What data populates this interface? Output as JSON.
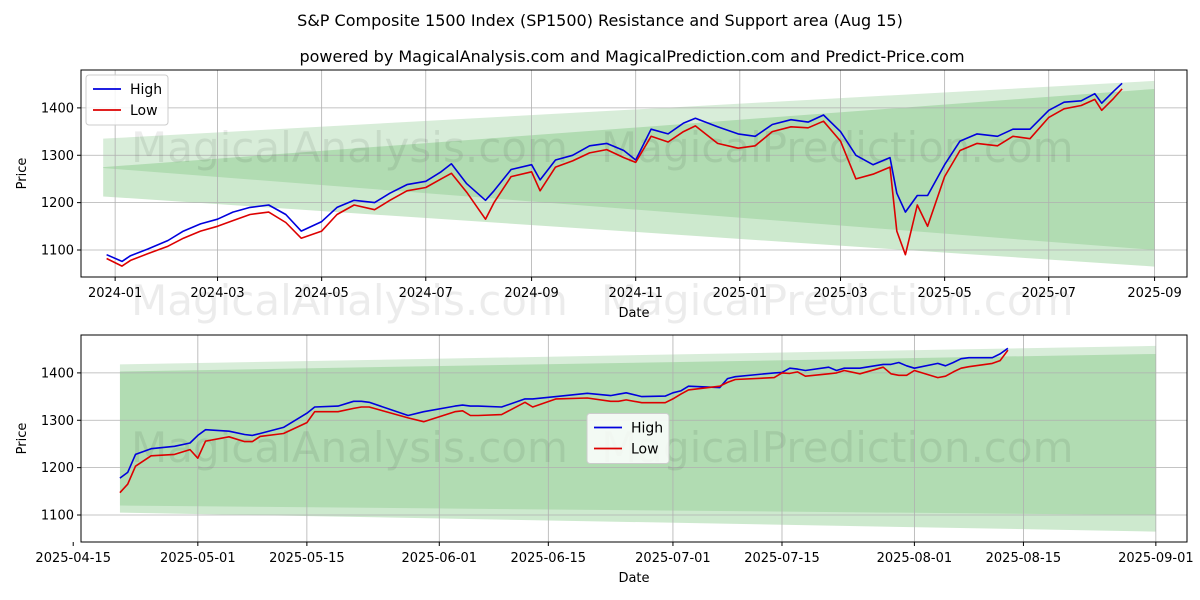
{
  "title": "S&P Composite 1500 Index (SP1500) Resistance and Support area (Aug 15)",
  "subtitle": "powered by MagicalAnalysis.com and MagicalPrediction.com and Predict-Price.com",
  "watermarks": [
    "MagicalAnalysis.com",
    "MagicalPrediction.com"
  ],
  "colors": {
    "high": "#0000dd",
    "low": "#dd0000",
    "band": "#4caf50",
    "grid": "#b0b0b0"
  },
  "chart_data": [
    {
      "type": "line",
      "xlabel": "Date",
      "ylabel": "Price",
      "xlim": [
        "2023-12-12",
        "2025-09-20"
      ],
      "ylim": [
        1043,
        1480
      ],
      "xticks": [
        "2024-01",
        "2024-03",
        "2024-05",
        "2024-07",
        "2024-09",
        "2024-11",
        "2025-01",
        "2025-03",
        "2025-05",
        "2025-07",
        "2025-09"
      ],
      "yticks": [
        1100,
        1200,
        1300,
        1400
      ],
      "grid": true,
      "legend": "top-left",
      "series": [
        {
          "name": "High",
          "x": [
            "2023-12-27",
            "2024-01-05",
            "2024-01-10",
            "2024-01-20",
            "2024-02-01",
            "2024-02-10",
            "2024-02-20",
            "2024-03-01",
            "2024-03-10",
            "2024-03-20",
            "2024-03-31",
            "2024-04-10",
            "2024-04-19",
            "2024-05-01",
            "2024-05-10",
            "2024-05-20",
            "2024-06-01",
            "2024-06-10",
            "2024-06-20",
            "2024-07-01",
            "2024-07-10",
            "2024-07-16",
            "2024-07-25",
            "2024-08-05",
            "2024-08-10",
            "2024-08-20",
            "2024-09-01",
            "2024-09-06",
            "2024-09-15",
            "2024-09-25",
            "2024-10-05",
            "2024-10-15",
            "2024-10-25",
            "2024-11-01",
            "2024-11-10",
            "2024-11-20",
            "2024-11-29",
            "2024-12-06",
            "2024-12-19",
            "2024-12-31",
            "2025-01-10",
            "2025-01-20",
            "2025-01-31",
            "2025-02-10",
            "2025-02-19",
            "2025-03-01",
            "2025-03-10",
            "2025-03-20",
            "2025-03-30",
            "2025-04-03",
            "2025-04-08",
            "2025-04-15",
            "2025-04-21",
            "2025-05-01",
            "2025-05-10",
            "2025-05-20",
            "2025-06-01",
            "2025-06-10",
            "2025-06-20",
            "2025-07-01",
            "2025-07-10",
            "2025-07-20",
            "2025-07-28",
            "2025-08-01",
            "2025-08-08",
            "2025-08-13"
          ],
          "values": [
            1090,
            1076,
            1088,
            1102,
            1120,
            1140,
            1155,
            1165,
            1180,
            1190,
            1195,
            1175,
            1140,
            1160,
            1190,
            1205,
            1200,
            1220,
            1238,
            1245,
            1265,
            1282,
            1240,
            1205,
            1225,
            1270,
            1280,
            1248,
            1290,
            1300,
            1320,
            1325,
            1310,
            1290,
            1355,
            1345,
            1368,
            1378,
            1360,
            1345,
            1340,
            1365,
            1375,
            1370,
            1385,
            1350,
            1300,
            1280,
            1295,
            1220,
            1180,
            1215,
            1215,
            1280,
            1330,
            1345,
            1340,
            1355,
            1355,
            1395,
            1412,
            1415,
            1430,
            1410,
            1435,
            1452
          ]
        },
        {
          "name": "Low",
          "x": [
            "2023-12-27",
            "2024-01-05",
            "2024-01-10",
            "2024-01-20",
            "2024-02-01",
            "2024-02-10",
            "2024-02-20",
            "2024-03-01",
            "2024-03-10",
            "2024-03-20",
            "2024-03-31",
            "2024-04-10",
            "2024-04-19",
            "2024-05-01",
            "2024-05-10",
            "2024-05-20",
            "2024-06-01",
            "2024-06-10",
            "2024-06-20",
            "2024-07-01",
            "2024-07-10",
            "2024-07-16",
            "2024-07-25",
            "2024-08-05",
            "2024-08-10",
            "2024-08-20",
            "2024-09-01",
            "2024-09-06",
            "2024-09-15",
            "2024-09-25",
            "2024-10-05",
            "2024-10-15",
            "2024-10-25",
            "2024-11-01",
            "2024-11-10",
            "2024-11-20",
            "2024-11-29",
            "2024-12-06",
            "2024-12-19",
            "2024-12-31",
            "2025-01-10",
            "2025-01-20",
            "2025-01-31",
            "2025-02-10",
            "2025-02-19",
            "2025-03-01",
            "2025-03-10",
            "2025-03-20",
            "2025-03-30",
            "2025-04-03",
            "2025-04-08",
            "2025-04-15",
            "2025-04-21",
            "2025-05-01",
            "2025-05-10",
            "2025-05-20",
            "2025-06-01",
            "2025-06-10",
            "2025-06-20",
            "2025-07-01",
            "2025-07-10",
            "2025-07-20",
            "2025-07-28",
            "2025-08-01",
            "2025-08-08",
            "2025-08-13"
          ],
          "values": [
            1082,
            1066,
            1078,
            1092,
            1108,
            1125,
            1140,
            1150,
            1162,
            1175,
            1180,
            1158,
            1125,
            1140,
            1175,
            1195,
            1185,
            1205,
            1225,
            1232,
            1250,
            1262,
            1222,
            1165,
            1200,
            1255,
            1265,
            1225,
            1275,
            1288,
            1305,
            1312,
            1295,
            1285,
            1340,
            1328,
            1350,
            1362,
            1325,
            1315,
            1320,
            1350,
            1360,
            1358,
            1372,
            1330,
            1250,
            1260,
            1275,
            1140,
            1090,
            1195,
            1150,
            1255,
            1310,
            1325,
            1320,
            1340,
            1335,
            1380,
            1398,
            1405,
            1418,
            1395,
            1420,
            1440
          ]
        }
      ],
      "bands": [
        {
          "name": "",
          "x": [
            "2023-12-25",
            "2025-09-01"
          ],
          "upper": [
            1335,
            1457
          ],
          "lower": [
            1273,
            1100
          ]
        },
        {
          "name": "",
          "x": [
            "2023-12-25",
            "2025-09-01"
          ],
          "upper": [
            1275,
            1440
          ],
          "lower": [
            1213,
            1065
          ]
        }
      ]
    },
    {
      "type": "line",
      "xlabel": "Date",
      "ylabel": "Price",
      "xlim": [
        "2025-04-16",
        "2025-09-05"
      ],
      "ylim": [
        1043,
        1480
      ],
      "xticks": [
        "2025-04-15",
        "2025-05-01",
        "2025-05-15",
        "2025-06-01",
        "2025-06-15",
        "2025-07-01",
        "2025-07-15",
        "2025-08-01",
        "2025-08-15",
        "2025-09-01"
      ],
      "yticks": [
        1100,
        1200,
        1300,
        1400
      ],
      "grid": true,
      "legend": "center",
      "series": [
        {
          "name": "High",
          "x": [
            "2025-04-21",
            "2025-04-22",
            "2025-04-23",
            "2025-04-25",
            "2025-04-28",
            "2025-04-30",
            "2025-05-01",
            "2025-05-02",
            "2025-05-05",
            "2025-05-07",
            "2025-05-08",
            "2025-05-09",
            "2025-05-12",
            "2025-05-15",
            "2025-05-16",
            "2025-05-19",
            "2025-05-21",
            "2025-05-22",
            "2025-05-23",
            "2025-05-28",
            "2025-05-30",
            "2025-06-03",
            "2025-06-04",
            "2025-06-05",
            "2025-06-06",
            "2025-06-09",
            "2025-06-12",
            "2025-06-13",
            "2025-06-16",
            "2025-06-20",
            "2025-06-23",
            "2025-06-24",
            "2025-06-25",
            "2025-06-27",
            "2025-06-30",
            "2025-07-01",
            "2025-07-02",
            "2025-07-03",
            "2025-07-07",
            "2025-07-08",
            "2025-07-09",
            "2025-07-14",
            "2025-07-15",
            "2025-07-16",
            "2025-07-17",
            "2025-07-18",
            "2025-07-21",
            "2025-07-22",
            "2025-07-23",
            "2025-07-25",
            "2025-07-28",
            "2025-07-29",
            "2025-07-30",
            "2025-07-31",
            "2025-08-01",
            "2025-08-04",
            "2025-08-05",
            "2025-08-06",
            "2025-08-07",
            "2025-08-08",
            "2025-08-11",
            "2025-08-12",
            "2025-08-13"
          ],
          "values": [
            1178,
            1190,
            1228,
            1240,
            1245,
            1252,
            1268,
            1280,
            1277,
            1270,
            1268,
            1272,
            1285,
            1315,
            1328,
            1330,
            1340,
            1340,
            1338,
            1310,
            1318,
            1330,
            1332,
            1330,
            1330,
            1328,
            1345,
            1345,
            1350,
            1357,
            1352,
            1355,
            1358,
            1350,
            1351,
            1358,
            1362,
            1372,
            1369,
            1388,
            1392,
            1400,
            1401,
            1410,
            1408,
            1405,
            1412,
            1405,
            1410,
            1410,
            1418,
            1418,
            1422,
            1415,
            1410,
            1420,
            1415,
            1422,
            1430,
            1432,
            1432,
            1440,
            1452
          ]
        },
        {
          "name": "Low",
          "x": [
            "2025-04-21",
            "2025-04-22",
            "2025-04-23",
            "2025-04-25",
            "2025-04-28",
            "2025-04-30",
            "2025-05-01",
            "2025-05-02",
            "2025-05-05",
            "2025-05-07",
            "2025-05-08",
            "2025-05-09",
            "2025-05-12",
            "2025-05-15",
            "2025-05-16",
            "2025-05-19",
            "2025-05-21",
            "2025-05-22",
            "2025-05-23",
            "2025-05-28",
            "2025-05-30",
            "2025-06-03",
            "2025-06-04",
            "2025-06-05",
            "2025-06-06",
            "2025-06-09",
            "2025-06-12",
            "2025-06-13",
            "2025-06-16",
            "2025-06-20",
            "2025-06-23",
            "2025-06-24",
            "2025-06-25",
            "2025-06-27",
            "2025-06-30",
            "2025-07-01",
            "2025-07-02",
            "2025-07-03",
            "2025-07-07",
            "2025-07-08",
            "2025-07-09",
            "2025-07-14",
            "2025-07-15",
            "2025-07-16",
            "2025-07-17",
            "2025-07-18",
            "2025-07-21",
            "2025-07-22",
            "2025-07-23",
            "2025-07-25",
            "2025-07-28",
            "2025-07-29",
            "2025-07-30",
            "2025-07-31",
            "2025-08-01",
            "2025-08-04",
            "2025-08-05",
            "2025-08-06",
            "2025-08-07",
            "2025-08-08",
            "2025-08-11",
            "2025-08-12",
            "2025-08-13"
          ],
          "values": [
            1147,
            1165,
            1203,
            1225,
            1228,
            1238,
            1220,
            1256,
            1265,
            1255,
            1255,
            1266,
            1272,
            1295,
            1318,
            1318,
            1325,
            1328,
            1328,
            1305,
            1297,
            1318,
            1320,
            1310,
            1310,
            1312,
            1338,
            1328,
            1345,
            1347,
            1340,
            1340,
            1343,
            1337,
            1337,
            1345,
            1355,
            1364,
            1372,
            1380,
            1386,
            1390,
            1400,
            1399,
            1402,
            1393,
            1398,
            1400,
            1405,
            1398,
            1412,
            1398,
            1395,
            1395,
            1405,
            1390,
            1393,
            1402,
            1410,
            1413,
            1420,
            1426,
            1448
          ]
        }
      ],
      "bands": [
        {
          "name": "",
          "x": [
            "2025-04-21",
            "2025-09-01"
          ],
          "upper": [
            1418,
            1457
          ],
          "lower": [
            1120,
            1100
          ]
        },
        {
          "name": "",
          "x": [
            "2025-04-21",
            "2025-09-01"
          ],
          "upper": [
            1403,
            1440
          ],
          "lower": [
            1105,
            1065
          ]
        }
      ]
    }
  ]
}
